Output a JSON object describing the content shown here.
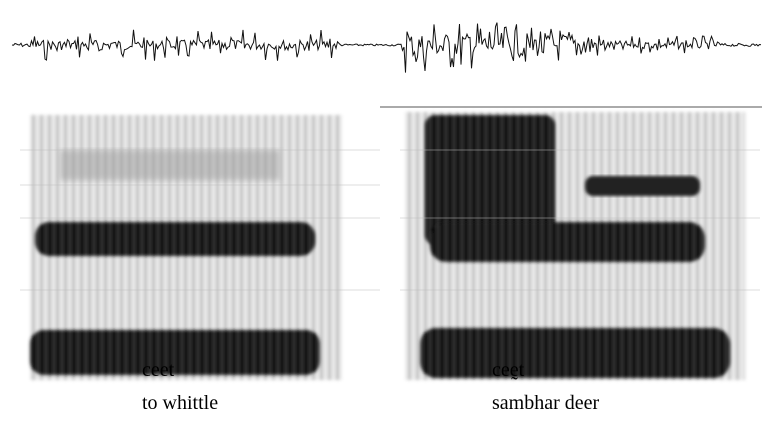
{
  "panels": [
    {
      "word": "ceet",
      "gloss": "to whittle"
    },
    {
      "word": "ceḛt",
      "gloss": "sambhar deer"
    }
  ]
}
